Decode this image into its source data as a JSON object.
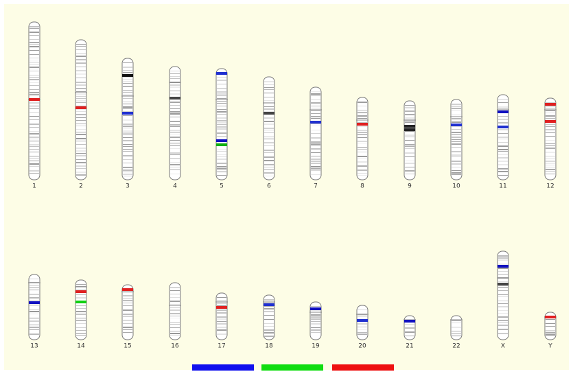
{
  "chromosomes": [
    {
      "label": "1"
    },
    {
      "label": "2"
    },
    {
      "label": "3"
    },
    {
      "label": "4"
    },
    {
      "label": "5"
    },
    {
      "label": "6"
    },
    {
      "label": "7"
    },
    {
      "label": "8"
    },
    {
      "label": "9"
    },
    {
      "label": "10"
    },
    {
      "label": "11"
    },
    {
      "label": "12"
    },
    {
      "label": "13"
    },
    {
      "label": "14"
    },
    {
      "label": "15"
    },
    {
      "label": "16"
    },
    {
      "label": "17"
    },
    {
      "label": "18"
    },
    {
      "label": "19"
    },
    {
      "label": "20"
    },
    {
      "label": "21"
    },
    {
      "label": "22"
    },
    {
      "label": "X"
    },
    {
      "label": "Y"
    }
  ]
}
